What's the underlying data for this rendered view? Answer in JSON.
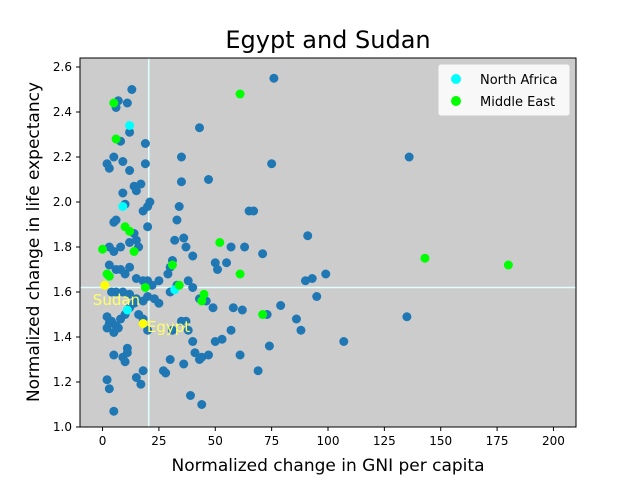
{
  "chart_data": {
    "type": "scatter",
    "title": "Egypt and Sudan",
    "xlabel": "Normalized change in GNI per capita",
    "ylabel": "Normalized change in life expectancy",
    "xlim": [
      -10,
      210
    ],
    "ylim": [
      1.0,
      2.64
    ],
    "xticks": [
      0,
      25,
      50,
      75,
      100,
      125,
      150,
      175,
      200
    ],
    "yticks": [
      1.0,
      1.2,
      1.4,
      1.6,
      1.8,
      2.0,
      2.2,
      2.4,
      2.6
    ],
    "background": "#cccccc",
    "legend_position": "top-right",
    "reference_lines": {
      "x": 20.5,
      "y": 1.62,
      "color": "#e0ffff"
    },
    "series": [
      {
        "name": "",
        "color": "#1f77b4",
        "points": [
          [
            2,
            2.17
          ],
          [
            3,
            2.15
          ],
          [
            5,
            2.2
          ],
          [
            6,
            2.42
          ],
          [
            7,
            2.45
          ],
          [
            8,
            2.27
          ],
          [
            9,
            2.18
          ],
          [
            11,
            2.44
          ],
          [
            12,
            2.31
          ],
          [
            13,
            2.5
          ],
          [
            12,
            2.14
          ],
          [
            14,
            2.07
          ],
          [
            15,
            2.05
          ],
          [
            17,
            2.08
          ],
          [
            19,
            2.26
          ],
          [
            19,
            2.17
          ],
          [
            20,
            1.98
          ],
          [
            21,
            2.0
          ],
          [
            18,
            1.96
          ],
          [
            20,
            1.89
          ],
          [
            14,
            1.86
          ],
          [
            16,
            1.8
          ],
          [
            9,
            2.04
          ],
          [
            10,
            1.99
          ],
          [
            5,
            1.91
          ],
          [
            6,
            1.92
          ],
          [
            3,
            1.8
          ],
          [
            5,
            1.78
          ],
          [
            8,
            1.8
          ],
          [
            12,
            1.82
          ],
          [
            15,
            1.83
          ],
          [
            3,
            1.72
          ],
          [
            6,
            1.7
          ],
          [
            8,
            1.7
          ],
          [
            10,
            1.68
          ],
          [
            12,
            1.71
          ],
          [
            15,
            1.66
          ],
          [
            18,
            1.65
          ],
          [
            20,
            1.65
          ],
          [
            22,
            1.63
          ],
          [
            25,
            1.65
          ],
          [
            4,
            1.6
          ],
          [
            6,
            1.6
          ],
          [
            9,
            1.6
          ],
          [
            12,
            1.59
          ],
          [
            15,
            1.57
          ],
          [
            18,
            1.56
          ],
          [
            20,
            1.58
          ],
          [
            23,
            1.57
          ],
          [
            25,
            1.55
          ],
          [
            2,
            1.49
          ],
          [
            4,
            1.47
          ],
          [
            6,
            1.45
          ],
          [
            8,
            1.48
          ],
          [
            10,
            1.5
          ],
          [
            12,
            1.53
          ],
          [
            14,
            1.55
          ],
          [
            16,
            1.5
          ],
          [
            18,
            1.48
          ],
          [
            20,
            1.43
          ],
          [
            2,
            1.44
          ],
          [
            3,
            1.46
          ],
          [
            5,
            1.42
          ],
          [
            7,
            1.44
          ],
          [
            9,
            1.31
          ],
          [
            10,
            1.29
          ],
          [
            11,
            1.33
          ],
          [
            11,
            1.35
          ],
          [
            5,
            1.32
          ],
          [
            2,
            1.21
          ],
          [
            3,
            1.17
          ],
          [
            15,
            1.22
          ],
          [
            17,
            1.19
          ],
          [
            18,
            1.25
          ],
          [
            5,
            1.07
          ],
          [
            29,
            1.68
          ],
          [
            30,
            1.71
          ],
          [
            31,
            1.74
          ],
          [
            32,
            1.83
          ],
          [
            33,
            1.92
          ],
          [
            34,
            1.98
          ],
          [
            35,
            2.09
          ],
          [
            35,
            2.2
          ],
          [
            43,
            2.33
          ],
          [
            47,
            2.1
          ],
          [
            36,
            1.84
          ],
          [
            37,
            1.8
          ],
          [
            40,
            1.76
          ],
          [
            30,
            1.6
          ],
          [
            33,
            1.63
          ],
          [
            38,
            1.65
          ],
          [
            40,
            1.62
          ],
          [
            43,
            1.57
          ],
          [
            46,
            1.56
          ],
          [
            49,
            1.53
          ],
          [
            31,
            1.43
          ],
          [
            35,
            1.47
          ],
          [
            37,
            1.47
          ],
          [
            38,
            1.43
          ],
          [
            40,
            1.38
          ],
          [
            41,
            1.33
          ],
          [
            43,
            1.3
          ],
          [
            44,
            1.31
          ],
          [
            47,
            1.32
          ],
          [
            28,
            1.24
          ],
          [
            27,
            1.25
          ],
          [
            30,
            1.3
          ],
          [
            36,
            1.28
          ],
          [
            39,
            1.14
          ],
          [
            44,
            1.1
          ],
          [
            50,
            1.38
          ],
          [
            53,
            1.39
          ],
          [
            57,
            1.43
          ],
          [
            61,
            1.32
          ],
          [
            58,
            1.53
          ],
          [
            62,
            1.52
          ],
          [
            50,
            1.73
          ],
          [
            51,
            1.7
          ],
          [
            55,
            1.73
          ],
          [
            57,
            1.8
          ],
          [
            63,
            1.8
          ],
          [
            65,
            1.96
          ],
          [
            67,
            1.96
          ],
          [
            71,
            1.77
          ],
          [
            73,
            1.5
          ],
          [
            74,
            1.36
          ],
          [
            75,
            2.17
          ],
          [
            76,
            2.55
          ],
          [
            69,
            1.25
          ],
          [
            79,
            1.54
          ],
          [
            86,
            1.48
          ],
          [
            88,
            1.43
          ],
          [
            90,
            1.65
          ],
          [
            93,
            1.66
          ],
          [
            91,
            1.85
          ],
          [
            95,
            1.58
          ],
          [
            99,
            1.68
          ],
          [
            107,
            1.38
          ],
          [
            135,
            1.49
          ],
          [
            136,
            2.2
          ]
        ]
      },
      {
        "name": "North Africa",
        "color": "#00ffff",
        "points": [
          [
            9,
            1.98
          ],
          [
            12,
            2.34
          ],
          [
            11,
            1.52
          ],
          [
            32,
            1.61
          ]
        ]
      },
      {
        "name": "Middle East",
        "color": "#00ff00",
        "points": [
          [
            0,
            1.79
          ],
          [
            2,
            1.68
          ],
          [
            3,
            1.67
          ],
          [
            5,
            2.44
          ],
          [
            6,
            2.28
          ],
          [
            10,
            1.89
          ],
          [
            12,
            1.87
          ],
          [
            14,
            1.78
          ],
          [
            19,
            1.62
          ],
          [
            31,
            1.72
          ],
          [
            34,
            1.63
          ],
          [
            44,
            1.56
          ],
          [
            45,
            1.59
          ],
          [
            52,
            1.82
          ],
          [
            61,
            1.68
          ],
          [
            61,
            2.48
          ],
          [
            71,
            1.5
          ],
          [
            143,
            1.75
          ],
          [
            180,
            1.72
          ]
        ]
      },
      {
        "name": "",
        "color": "#ffff00",
        "points": [
          [
            1,
            1.63
          ],
          [
            18,
            1.46
          ]
        ]
      }
    ],
    "annotations": [
      {
        "text": "Sudan",
        "x": 1,
        "y": 1.57,
        "color": "#ffff66"
      },
      {
        "text": "Egypt",
        "x": 25,
        "y": 1.45,
        "color": "#ffff66"
      }
    ]
  }
}
